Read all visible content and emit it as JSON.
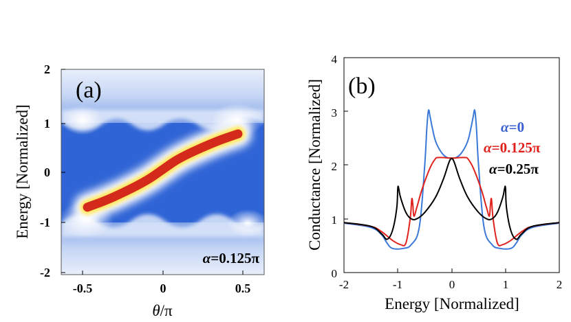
{
  "chart_data": [
    {
      "type": "heatmap",
      "panel_label": "(a)",
      "xlabel_var": "θ",
      "xlabel_rest": "/π",
      "ylabel": "Energy [Normalized]",
      "x_ticks": [
        "-0.5",
        "0",
        "0.5"
      ],
      "y_ticks": [
        "2",
        "1",
        "0",
        "-1",
        "-2"
      ],
      "xlim": [
        -0.58,
        0.58
      ],
      "ylim": [
        -2.1,
        2.1
      ],
      "annotation_var": "α",
      "annotation_rest": "=0.125π",
      "band": {
        "description": "bright red diagonal state connecting band edges",
        "x": [
          -0.43,
          -0.3,
          -0.1,
          0.0,
          0.1,
          0.3,
          0.43
        ],
        "y": [
          -0.72,
          -0.55,
          -0.2,
          0.05,
          0.3,
          0.62,
          0.78
        ]
      },
      "colors": {
        "low": "#2f64d6",
        "mid": "#ffffff",
        "high": "#d42a1c",
        "edge": "#ffe65c"
      }
    },
    {
      "type": "line",
      "panel_label": "(b)",
      "xlabel": "Energy [Normalized]",
      "ylabel": "Conductance  [Normalized]",
      "xlim": [
        -2,
        2
      ],
      "ylim": [
        0,
        4
      ],
      "x_ticks": [
        "-2",
        "-1",
        "0",
        "1",
        "2"
      ],
      "y_ticks": [
        "0",
        "1",
        "2",
        "3",
        "4"
      ],
      "series": [
        {
          "name": "α=0",
          "name_var": "α",
          "name_rest": "=0",
          "color": "#3a78d8",
          "x": [
            0,
            0.1,
            0.2,
            0.3,
            0.36,
            0.4,
            0.43,
            0.46,
            0.5,
            0.6,
            0.75,
            0.9,
            1.1,
            1.2,
            1.3,
            1.5,
            2.0
          ],
          "y": [
            2.13,
            2.15,
            2.25,
            2.45,
            2.7,
            2.9,
            3.02,
            2.7,
            2.0,
            0.85,
            0.52,
            0.45,
            0.45,
            0.55,
            0.7,
            0.84,
            0.92
          ]
        },
        {
          "name": "α=0.125π",
          "name_var": "α",
          "name_rest": "=0.125π",
          "color": "#e0201a",
          "x": [
            0,
            0.15,
            0.25,
            0.3,
            0.4,
            0.55,
            0.65,
            0.7,
            0.72,
            0.74,
            0.77,
            0.85,
            0.95,
            1.1,
            1.3,
            1.5,
            2.0
          ],
          "y": [
            2.13,
            2.14,
            2.14,
            2.12,
            1.95,
            1.55,
            1.2,
            1.05,
            1.25,
            1.37,
            1.0,
            0.55,
            0.52,
            0.6,
            0.76,
            0.86,
            0.93
          ]
        },
        {
          "name": "α=0.25π",
          "name_var": "α",
          "name_rest": "=0.25π",
          "color": "#000000",
          "x": [
            0,
            0.05,
            0.15,
            0.3,
            0.5,
            0.65,
            0.75,
            0.85,
            0.95,
            0.98,
            1.0,
            1.02,
            1.1,
            1.2,
            1.3,
            1.5,
            2.0
          ],
          "y": [
            2.12,
            2.05,
            1.75,
            1.4,
            1.12,
            1.0,
            1.0,
            1.12,
            1.4,
            1.55,
            1.58,
            1.2,
            0.78,
            0.62,
            0.72,
            0.86,
            0.93
          ]
        }
      ]
    }
  ]
}
